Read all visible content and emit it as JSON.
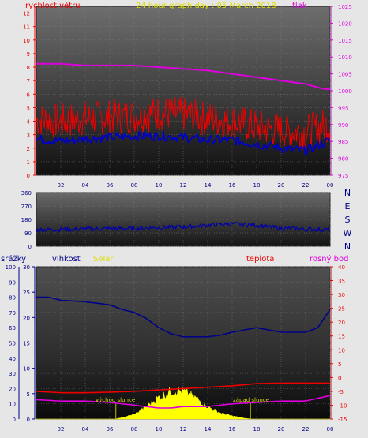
{
  "chart_data": [
    {
      "type": "line",
      "title": "24 hour graph day : 05 March 2018",
      "x_ticks": [
        "02",
        "04",
        "06",
        "08",
        "10",
        "12",
        "14",
        "16",
        "18",
        "20",
        "22",
        "00"
      ],
      "ylabel": "rychlost větru",
      "ylabel_right": "tlak",
      "ylim": [
        0,
        12.5
      ],
      "y_ticks": [
        0,
        1,
        2,
        3,
        4,
        5,
        6,
        7,
        8,
        9,
        10,
        11,
        12
      ],
      "ylim_right": [
        975,
        1025
      ],
      "y_ticks_right": [
        975,
        980,
        985,
        990,
        995,
        1000,
        1005,
        1010,
        1015,
        1020,
        1025
      ],
      "series": [
        {
          "name": "tlak",
          "axis": "right",
          "color": "#dd00dd",
          "x": [
            0,
            2,
            4,
            6,
            8,
            10,
            12,
            14,
            16,
            18,
            20,
            22,
            23.5,
            24
          ],
          "y": [
            1008,
            1008,
            1007.5,
            1007.5,
            1007.5,
            1007,
            1006.5,
            1006,
            1005,
            1004,
            1003,
            1002,
            1000.5,
            1000.5
          ]
        },
        {
          "name": "",
          "axis": "left",
          "color": "#ee0000",
          "style": "noisy",
          "x": [
            0,
            2,
            4,
            6,
            8,
            10,
            12,
            14,
            16,
            18,
            20,
            22,
            24
          ],
          "y": [
            4.1,
            4.0,
            4.2,
            4.3,
            4.4,
            4.6,
            4.5,
            4.2,
            4.0,
            3.6,
            3.3,
            3.2,
            3.8
          ]
        },
        {
          "name": "",
          "axis": "left",
          "color": "#0000cc",
          "x": [
            0,
            2,
            4,
            6,
            8,
            10,
            12,
            14,
            16,
            18,
            20,
            22,
            24
          ],
          "y": [
            2.7,
            2.5,
            2.7,
            2.8,
            2.9,
            2.9,
            2.8,
            2.6,
            2.6,
            2.3,
            2.0,
            1.8,
            2.6
          ]
        }
      ]
    },
    {
      "type": "line",
      "ylim": [
        0,
        360
      ],
      "y_ticks": [
        0,
        90,
        180,
        270,
        360
      ],
      "right_labels": [
        "N",
        "W",
        "S",
        "E",
        "N"
      ],
      "x_ticks": [],
      "series": [
        {
          "name": "",
          "color": "#0000aa",
          "style": "noisy",
          "x": [
            0,
            4,
            8,
            12,
            16,
            18,
            20,
            24
          ],
          "y": [
            110,
            115,
            120,
            130,
            150,
            140,
            120,
            110
          ]
        }
      ]
    },
    {
      "type": "line",
      "x_ticks": [
        "02",
        "04",
        "06",
        "08",
        "10",
        "12",
        "14",
        "16",
        "18",
        "20",
        "22",
        "00"
      ],
      "axis_titles": {
        "srazky": "srážky",
        "vlhkost": "vlhkost",
        "solar": "Solar",
        "teplota": "teplota",
        "rosny_bod": "rosný bod"
      },
      "srazky_ticks": [
        0,
        10,
        20,
        30,
        40,
        50,
        60,
        70,
        80,
        90,
        100
      ],
      "ylim_srazky": [
        0,
        100
      ],
      "vlhkost_ticks": [
        0,
        5,
        10,
        15,
        20,
        25,
        30
      ],
      "ylim_vlhkost": [
        0,
        30
      ],
      "teplota_ticks": [
        -15,
        -10,
        -5,
        0,
        5,
        10,
        15,
        20,
        25,
        30,
        35,
        40
      ],
      "ylim_teplota": [
        -15,
        40
      ],
      "annotations": [
        "východ slunce",
        "západ slunce"
      ],
      "sunrise_hour": 6.5,
      "sunset_hour": 17.5,
      "series": [
        {
          "name": "vlhkost",
          "axis": "srazky",
          "color": "#000088",
          "x": [
            0,
            1,
            2,
            4,
            6,
            7,
            8,
            9,
            10,
            11,
            12,
            14,
            15,
            16,
            18,
            20,
            22,
            23,
            24
          ],
          "y": [
            80,
            80,
            78,
            77,
            75,
            72,
            70,
            66,
            60,
            56,
            54,
            54,
            55,
            57,
            60,
            57,
            57,
            60,
            72
          ]
        },
        {
          "name": "teplota",
          "axis": "teplota",
          "color": "#ee0000",
          "x": [
            0,
            2,
            4,
            6,
            8,
            10,
            12,
            14,
            16,
            18,
            20,
            22,
            24
          ],
          "y": [
            -5,
            -5.5,
            -5.5,
            -5.3,
            -5,
            -4.5,
            -4,
            -3.5,
            -3,
            -2.2,
            -2,
            -2,
            -2
          ]
        },
        {
          "name": "rosný bod",
          "axis": "teplota",
          "color": "#dd00dd",
          "x": [
            0,
            2,
            4,
            6,
            8,
            10,
            11,
            12,
            14,
            16,
            18,
            20,
            22,
            24
          ],
          "y": [
            -8,
            -8.5,
            -8.5,
            -9,
            -10,
            -11,
            -11,
            -10.5,
            -10.5,
            -9.5,
            -9,
            -8.5,
            -8.5,
            -6.5
          ]
        },
        {
          "name": "Solar",
          "axis": "srazky",
          "color": "#ffff00",
          "type": "area",
          "style": "noisy",
          "x": [
            0,
            6.5,
            7,
            8,
            9,
            10,
            11,
            11.5,
            12,
            13,
            14,
            15,
            16,
            17,
            17.5,
            24
          ],
          "y": [
            0,
            0,
            1,
            3,
            8,
            14,
            18,
            19,
            18,
            14,
            8,
            4,
            2,
            0.5,
            0,
            0
          ]
        }
      ]
    }
  ]
}
